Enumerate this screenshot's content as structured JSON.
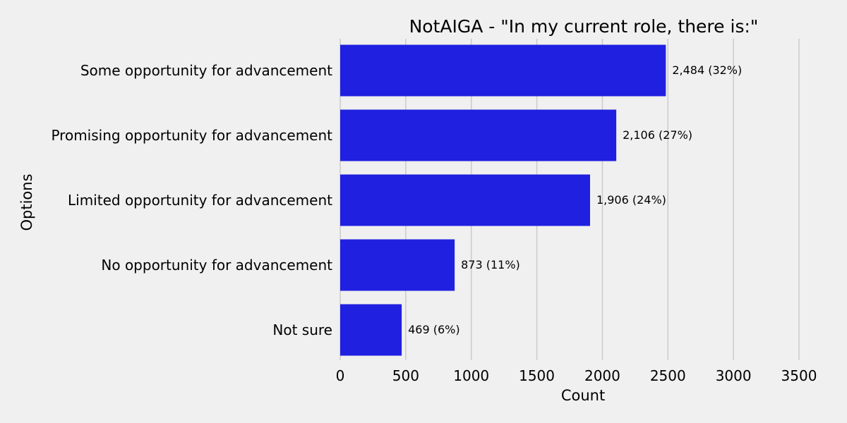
{
  "chart_data": {
    "type": "bar",
    "orientation": "horizontal",
    "title": "NotAIGA - \"In my current role, there is:\"",
    "xlabel": "Count",
    "ylabel": "Options",
    "categories": [
      "Some opportunity for advancement",
      "Promising opportunity for advancement",
      "Limited opportunity for advancement",
      "No opportunity for advancement",
      "Not sure"
    ],
    "values": [
      2484,
      2106,
      1906,
      873,
      469
    ],
    "data_labels": [
      "2,484 (32%)",
      "2,106 (27%)",
      "1,906 (24%)",
      "873 (11%)",
      "469 (6%)"
    ],
    "xlim": [
      0,
      3500
    ],
    "xticks": [
      0,
      500,
      1000,
      1500,
      2000,
      2500,
      3000,
      3500
    ],
    "xtick_labels": [
      "0",
      "500",
      "1000",
      "1500",
      "2000",
      "2500",
      "3000",
      "3500"
    ],
    "grid": "vertical",
    "colors": {
      "bar": "#2020e0",
      "background": "#f0f0f0",
      "grid": "#cbcbcb",
      "text": "#000000"
    }
  }
}
